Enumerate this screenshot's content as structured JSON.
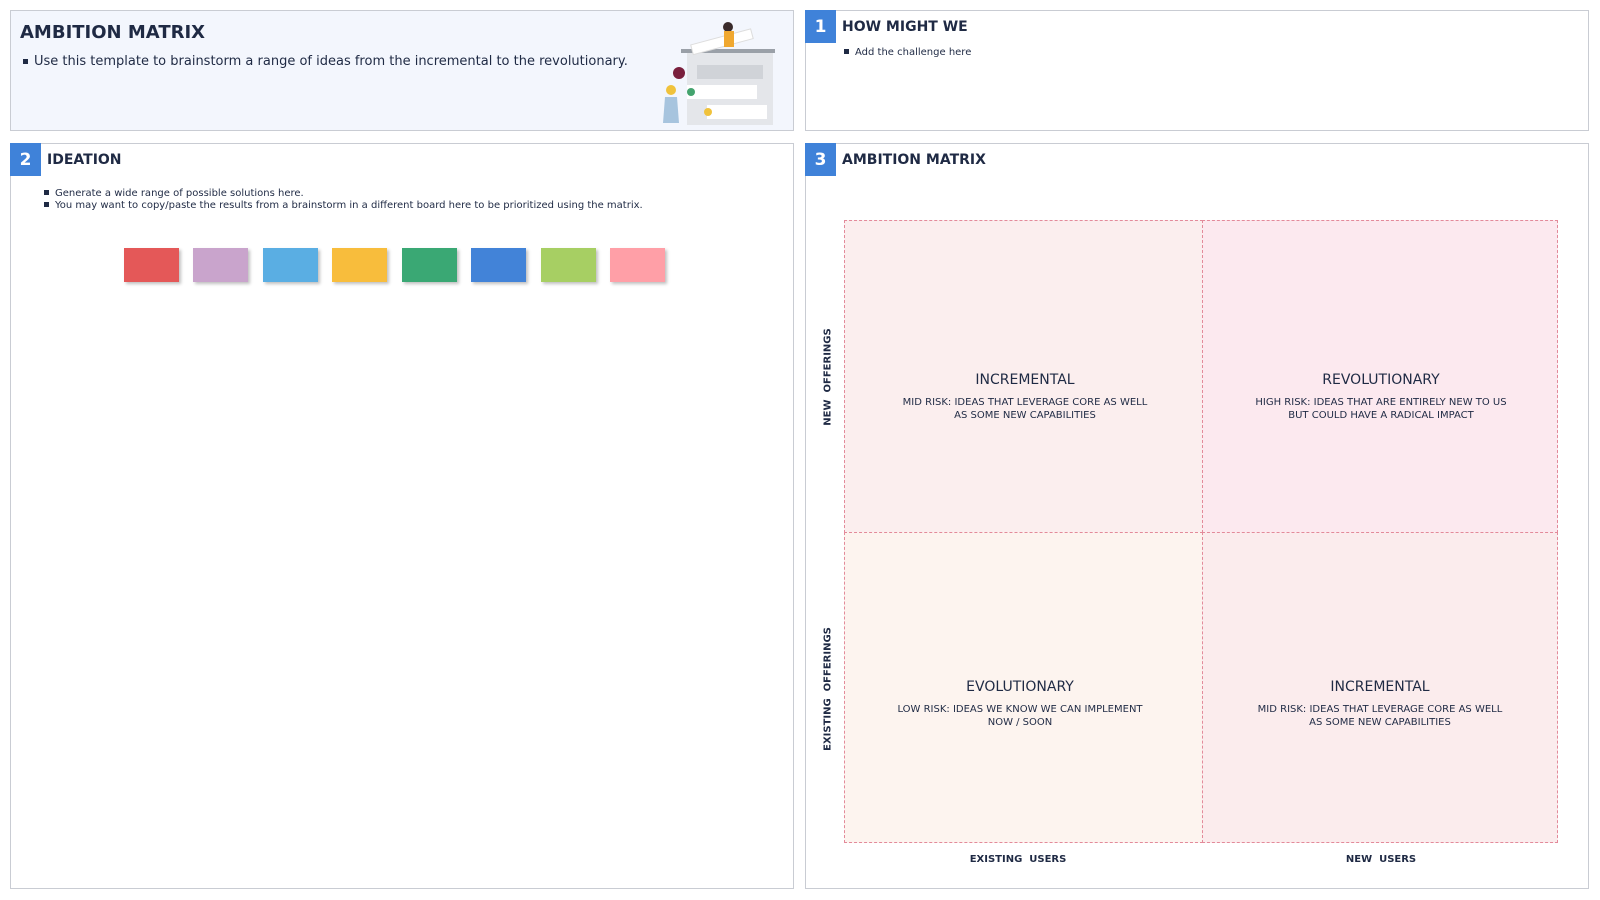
{
  "header": {
    "title": "AMBITION MATRIX",
    "bullets": [
      "Use this template to brainstorm a range of ideas from the incremental to the revolutionary."
    ]
  },
  "sections": [
    {
      "number": "1",
      "title": "HOW MIGHT WE",
      "bullets": [
        "Add the challenge here"
      ]
    },
    {
      "number": "2",
      "title": "IDEATION",
      "bullets": [
        "Generate a wide range of possible solutions here.",
        "You may want to copy/paste the results from a brainstorm in a different board here to be prioritized using the matrix."
      ]
    },
    {
      "number": "3",
      "title": "AMBITION MATRIX",
      "quadrants": [
        {
          "title": "INCREMENTAL",
          "description": "MID RISK: IDEAS THAT LEVERAGE CORE AS WELL AS SOME NEW CAPABILITIES"
        },
        {
          "title": "REVOLUTIONARY",
          "description": "HIGH RISK: IDEAS THAT ARE ENTIRELY NEW TO US BUT COULD HAVE A RADICAL IMPACT"
        },
        {
          "title": "EVOLUTIONARY",
          "description": "LOW RISK: IDEAS WE KNOW WE CAN IMPLEMENT NOW / SOON"
        },
        {
          "title": "INCREMENTAL",
          "description": "MID RISK: IDEAS THAT LEVERAGE CORE AS WELL AS SOME NEW CAPABILITIES"
        }
      ],
      "y_axis_labels": [
        "NEW  OFFERINGS",
        "EXISTING  OFFERINGS"
      ],
      "x_axis_labels": [
        "EXISTING  USERS",
        "NEW  USERS"
      ]
    }
  ]
}
